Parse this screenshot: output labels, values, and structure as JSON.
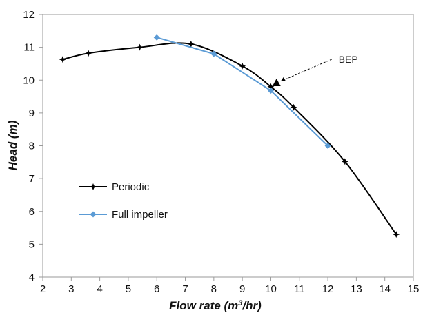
{
  "chart_data": {
    "type": "line",
    "title": "",
    "xlabel": "Flow rate (m3/hr)",
    "xlabel_parts": {
      "main": "Flow rate (m",
      "sup": "3",
      "tail": "/hr)"
    },
    "ylabel": "Head (m)",
    "xlim": [
      2,
      15
    ],
    "ylim": [
      4,
      12
    ],
    "xticks": [
      2,
      3,
      4,
      5,
      6,
      7,
      8,
      9,
      10,
      11,
      12,
      13,
      14,
      15
    ],
    "yticks": [
      4,
      5,
      6,
      7,
      8,
      9,
      10,
      11,
      12
    ],
    "grid": false,
    "legend_position": "center-left",
    "series": [
      {
        "name": "Periodic",
        "color": "#000000",
        "marker": "star",
        "x": [
          2.7,
          3.6,
          5.4,
          7.2,
          9.0,
          10.0,
          10.8,
          12.6,
          14.4
        ],
        "y": [
          10.63,
          10.82,
          11.0,
          11.1,
          10.43,
          9.8,
          9.17,
          7.52,
          5.3
        ]
      },
      {
        "name": "Full impeller",
        "color": "#5B9BD5",
        "marker": "diamond",
        "x": [
          6.0,
          8.0,
          10.0,
          12.0
        ],
        "y": [
          11.3,
          10.8,
          9.68,
          8.0
        ]
      }
    ],
    "annotations": [
      {
        "text": "BEP",
        "point": {
          "x": 10.2,
          "y": 9.9
        },
        "marker": "triangle"
      }
    ]
  }
}
